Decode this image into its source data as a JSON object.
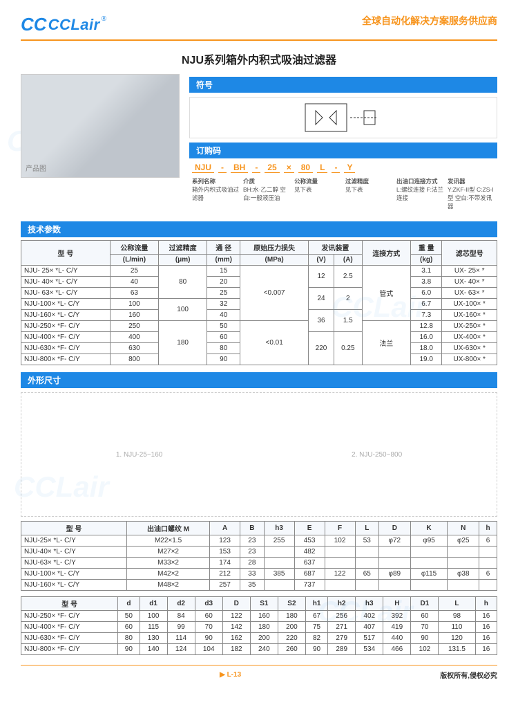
{
  "brand": {
    "mark": "CC",
    "name": "CCLair",
    "reg": "®"
  },
  "tagline": "全球自动化解决方案服务供应商",
  "title": "NJU系列箱外内积式吸油过滤器",
  "sections": {
    "symbol": "符号",
    "order": "订购码",
    "tech": "技术参数",
    "dims": "外形尺寸"
  },
  "order_code": {
    "parts": [
      "NJU",
      "-",
      "BH",
      "-",
      "25",
      "×",
      "80",
      "L",
      "-",
      "Y"
    ],
    "labels": {
      "series": "系列名称",
      "series_desc": "箱外内积式吸油过滤器",
      "media": "介质",
      "media_desc": "BH:水·乙二醇\n空白:一般液压油",
      "flow": "公称流量",
      "flow_desc": "见下表",
      "precision": "过滤精度",
      "precision_desc": "见下表",
      "port": "出油口连接方式",
      "port_desc": "L:螺纹连接\nF:法兰连接",
      "transmitter": "发讯器",
      "transmitter_desc": "Y:ZKF-II型\nC:ZS-I型\n空白:不带发讯器"
    }
  },
  "tech_table": {
    "headers": [
      "型 号",
      "公称流量\n(L/min)",
      "过滤精度\n(μm)",
      "通 径\n(mm)",
      "原始压力损失\n(MPa)",
      "发讯装置 (V)",
      "发讯装置 (A)",
      "连接方式",
      "重 量\n(kg)",
      "滤芯型号"
    ],
    "headers_top": [
      "型 号",
      "公称流量",
      "过滤精度",
      "通 径",
      "原始压力损失",
      "发讯装置",
      "连接方式",
      "重 量",
      "滤芯型号"
    ],
    "headers_sub": [
      "(L/min)",
      "(μm)",
      "(mm)",
      "(MPa)",
      "(V)",
      "(A)",
      "(kg)"
    ],
    "rows": [
      {
        "model": "NJU- 25× *L- C/Y",
        "flow": "25",
        "prec_group": "80",
        "dia": "15",
        "dp_group": "<0.007",
        "v_group": "12",
        "a_group": "2.5",
        "conn_group": "管式",
        "wt": "3.1",
        "elem": "UX- 25× *"
      },
      {
        "model": "NJU- 40× *L- C/Y",
        "flow": "40",
        "dia": "20",
        "wt": "3.8",
        "elem": "UX- 40× *"
      },
      {
        "model": "NJU- 63× *L- C/Y",
        "flow": "63",
        "dia": "25",
        "v_group": "24",
        "a_group": "2",
        "wt": "6.0",
        "elem": "UX- 63× *"
      },
      {
        "model": "NJU-100× *L- C/Y",
        "flow": "100",
        "prec_group": "100",
        "dia": "32",
        "wt": "6.7",
        "elem": "UX-100× *"
      },
      {
        "model": "NJU-160× *L- C/Y",
        "flow": "160",
        "dia": "40",
        "v_group": "36",
        "a_group": "1.5",
        "wt": "7.3",
        "elem": "UX-160× *"
      },
      {
        "model": "NJU-250× *F- C/Y",
        "flow": "250",
        "prec_group": "180",
        "dia": "50",
        "dp_group": "<0.01",
        "conn_group": "法兰",
        "wt": "12.8",
        "elem": "UX-250× *"
      },
      {
        "model": "NJU-400× *F- C/Y",
        "flow": "400",
        "dia": "60",
        "v_group": "220",
        "a_group": "0.25",
        "wt": "16.0",
        "elem": "UX-400× *"
      },
      {
        "model": "NJU-630× *F- C/Y",
        "flow": "630",
        "dia": "80",
        "wt": "18.0",
        "elem": "UX-630× *"
      },
      {
        "model": "NJU-800× *F- C/Y",
        "flow": "800",
        "dia": "90",
        "wt": "19.0",
        "elem": "UX-800× *"
      }
    ]
  },
  "dim_labels": {
    "d1": "1. NJU-25~160",
    "d2": "2. NJU-250~800"
  },
  "dim_table1": {
    "headers": [
      "型 号",
      "出油口螺纹\nM",
      "A",
      "B",
      "h3",
      "E",
      "F",
      "L",
      "D",
      "K",
      "N",
      "h"
    ],
    "rows": [
      [
        "NJU-25× *L- C/Y",
        "M22×1.5",
        "123",
        "23",
        "255",
        "453",
        "102",
        "53",
        "φ72",
        "φ95",
        "φ25",
        "6"
      ],
      [
        "NJU-40× *L- C/Y",
        "M27×2",
        "153",
        "23",
        "",
        "482",
        "",
        "",
        "",
        "",
        "",
        ""
      ],
      [
        "NJU-63× *L- C/Y",
        "M33×2",
        "174",
        "28",
        "",
        "637",
        "",
        "",
        "",
        "",
        "",
        ""
      ],
      [
        "NJU-100× *L- C/Y",
        "M42×2",
        "212",
        "33",
        "385",
        "687",
        "122",
        "65",
        "φ89",
        "φ115",
        "φ38",
        "6"
      ],
      [
        "NJU-160× *L- C/Y",
        "M48×2",
        "257",
        "35",
        "",
        "737",
        "",
        "",
        "",
        "",
        "",
        ""
      ]
    ]
  },
  "dim_table2": {
    "headers": [
      "型 号",
      "d",
      "d1",
      "d2",
      "d3",
      "D",
      "S1",
      "S2",
      "h1",
      "h2",
      "h3",
      "H",
      "D1",
      "L",
      "h"
    ],
    "rows": [
      [
        "NJU-250× *F- C/Y",
        "50",
        "100",
        "84",
        "60",
        "122",
        "160",
        "180",
        "67",
        "256",
        "402",
        "392",
        "60",
        "98",
        "16"
      ],
      [
        "NJU-400× *F- C/Y",
        "60",
        "115",
        "99",
        "70",
        "142",
        "180",
        "200",
        "75",
        "271",
        "407",
        "419",
        "70",
        "110",
        "16"
      ],
      [
        "NJU-630× *F- C/Y",
        "80",
        "130",
        "114",
        "90",
        "162",
        "200",
        "220",
        "82",
        "279",
        "517",
        "440",
        "90",
        "120",
        "16"
      ],
      [
        "NJU-800× *F- C/Y",
        "90",
        "140",
        "124",
        "104",
        "182",
        "240",
        "260",
        "90",
        "289",
        "534",
        "466",
        "102",
        "131.5",
        "16"
      ]
    ]
  },
  "footer": {
    "page": "L-13",
    "copyright": "版权所有,侵权必究"
  },
  "colors": {
    "brand_blue": "#1e88e5",
    "brand_orange": "#f7941d",
    "border": "#888"
  },
  "watermark": "CCLair"
}
